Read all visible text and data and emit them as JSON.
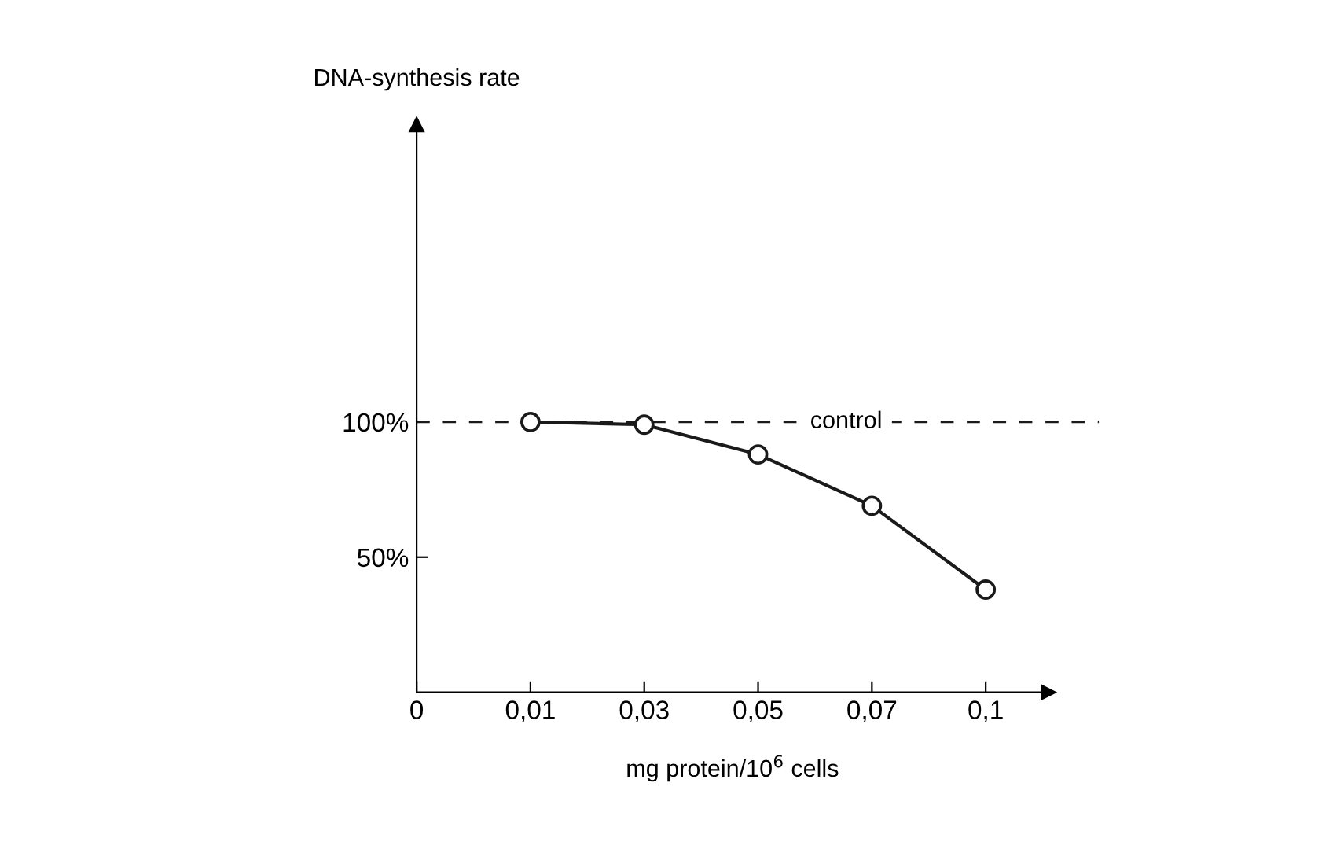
{
  "chart_data": {
    "type": "line",
    "ylabel": "DNA-synthesis rate",
    "xlabel": "mg protein/10$^{6}$ cells",
    "categories": [
      "0",
      "0,01",
      "0,03",
      "0,05",
      "0,07",
      "0,1"
    ],
    "series": [
      {
        "color": "#1a1a1a",
        "values": [
          null,
          100,
          99,
          88,
          69,
          38
        ]
      }
    ],
    "ylim": [
      0,
      210
    ],
    "yticks": [
      {
        "value": 50,
        "label": "50%"
      },
      {
        "value": 100,
        "label": "100%"
      }
    ],
    "ref_lines": [
      {
        "axis": "y",
        "value": 100,
        "label": "control",
        "line_style": "dashed",
        "color": "#1a1a1a"
      }
    ],
    "marker": "circle",
    "line_style": "solid",
    "grid": false,
    "legend": false
  }
}
